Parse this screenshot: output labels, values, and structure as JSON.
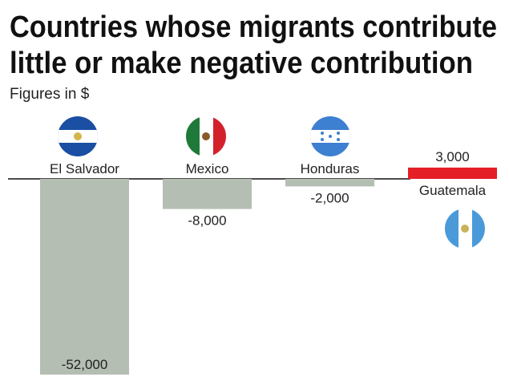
{
  "chart_data": {
    "type": "bar",
    "title": [
      "Countries whose migrants contribute",
      "little or make negative contribution"
    ],
    "subtitle": "Figures in $",
    "categories": [
      "El Salvador",
      "Mexico",
      "Honduras",
      "Guatemala"
    ],
    "values": [
      -52000,
      -8000,
      -2000,
      3000
    ],
    "value_labels": [
      "-52,000",
      "-8,000",
      "-2,000",
      "3,000"
    ],
    "colors": [
      "#b4beb2",
      "#b4beb2",
      "#b4beb2",
      "#e41f26"
    ]
  }
}
